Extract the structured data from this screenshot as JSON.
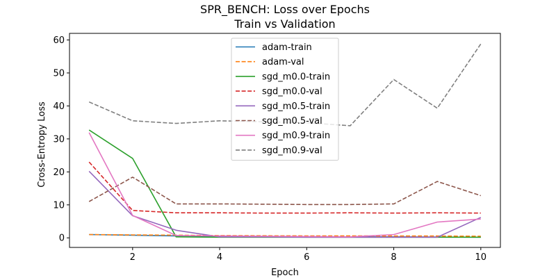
{
  "chart_data": {
    "type": "line",
    "title": "SPR_BENCH: Loss over Epochs",
    "subtitle": "Train vs Validation",
    "xlabel": "Epoch",
    "ylabel": "Cross-Entropy Loss",
    "xlim": [
      0.55,
      10.45
    ],
    "ylim": [
      -2.9,
      62.0
    ],
    "xticks": [
      2,
      4,
      6,
      8,
      10
    ],
    "yticks": [
      0,
      10,
      20,
      30,
      40,
      50,
      60
    ],
    "grid": false,
    "legend_position": "top-center",
    "x": [
      1,
      2,
      3,
      4,
      5,
      6,
      7,
      8,
      9,
      10
    ],
    "series": [
      {
        "name": "adam-train",
        "color": "#1f77b4",
        "dash": "solid",
        "values": [
          1.0,
          0.8,
          0.6,
          0.5,
          0.4,
          0.35,
          0.3,
          0.3,
          0.25,
          0.2
        ]
      },
      {
        "name": "adam-val",
        "color": "#ff7f0e",
        "dash": "dashed",
        "values": [
          1.0,
          0.9,
          0.8,
          0.7,
          0.65,
          0.6,
          0.6,
          0.55,
          0.55,
          0.5
        ]
      },
      {
        "name": "sgd_m0.0-train",
        "color": "#2ca02c",
        "dash": "solid",
        "values": [
          32.7,
          24.1,
          0.3,
          0.2,
          0.2,
          0.2,
          0.2,
          0.2,
          0.2,
          0.2
        ]
      },
      {
        "name": "sgd_m0.0-val",
        "color": "#d62728",
        "dash": "dashed",
        "values": [
          23.0,
          8.3,
          7.6,
          7.6,
          7.5,
          7.5,
          7.6,
          7.5,
          7.6,
          7.5
        ]
      },
      {
        "name": "sgd_m0.5-train",
        "color": "#9467bd",
        "dash": "solid",
        "values": [
          20.2,
          6.7,
          2.3,
          0.3,
          0.3,
          0.2,
          0.2,
          0.2,
          0.2,
          6.2
        ]
      },
      {
        "name": "sgd_m0.5-val",
        "color": "#8c564b",
        "dash": "dashed",
        "values": [
          11.0,
          18.4,
          10.3,
          10.3,
          10.2,
          10.1,
          10.1,
          10.3,
          17.1,
          12.8
        ]
      },
      {
        "name": "sgd_m0.9-train",
        "color": "#e377c2",
        "dash": "solid",
        "values": [
          31.9,
          6.8,
          0.7,
          0.6,
          0.5,
          0.4,
          0.3,
          1.0,
          4.8,
          5.7
        ]
      },
      {
        "name": "sgd_m0.9-val",
        "color": "#7f7f7f",
        "dash": "dashed",
        "values": [
          41.2,
          35.5,
          34.7,
          35.5,
          35.2,
          34.9,
          34.0,
          48.0,
          39.3,
          58.8
        ]
      }
    ]
  }
}
